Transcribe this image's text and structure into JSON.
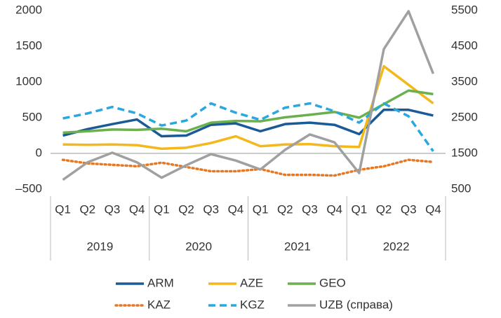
{
  "chart_data": {
    "type": "line",
    "categories": [
      "Q1",
      "Q2",
      "Q3",
      "Q4",
      "Q1",
      "Q2",
      "Q3",
      "Q4",
      "Q1",
      "Q2",
      "Q3",
      "Q4",
      "Q1",
      "Q2",
      "Q3",
      "Q4"
    ],
    "years": [
      "2019",
      "2020",
      "2021",
      "2022"
    ],
    "ylim": [
      -500,
      2000
    ],
    "yticks": [
      {
        "value": -500,
        "label": "–500"
      },
      0,
      500,
      1000,
      1500,
      2000
    ],
    "y2lim": [
      500,
      5500
    ],
    "y2ticks": [
      500,
      1500,
      2500,
      3500,
      4500,
      5500
    ],
    "series": [
      {
        "name": "ARM",
        "color": "#1a5a96",
        "style": "solid",
        "values": [
          250,
          340,
          410,
          475,
          240,
          250,
          400,
          420,
          310,
          410,
          430,
          400,
          270,
          610,
          610,
          530
        ]
      },
      {
        "name": "AZE",
        "color": "#f5b81c",
        "style": "solid",
        "values": [
          125,
          120,
          125,
          115,
          65,
          80,
          145,
          240,
          100,
          125,
          130,
          100,
          90,
          1220,
          960,
          700
        ]
      },
      {
        "name": "GEO",
        "color": "#6ab04c",
        "style": "solid",
        "values": [
          290,
          310,
          335,
          330,
          345,
          310,
          430,
          455,
          450,
          505,
          540,
          580,
          500,
          690,
          880,
          830
        ]
      },
      {
        "name": "KAZ",
        "color": "#e87722",
        "style": "dotted",
        "values": [
          -90,
          -140,
          -160,
          -180,
          -130,
          -190,
          -250,
          -250,
          -220,
          -300,
          -300,
          -310,
          -230,
          -180,
          -90,
          -120
        ]
      },
      {
        "name": "KGZ",
        "color": "#29a8e0",
        "style": "dashed",
        "values": [
          490,
          560,
          650,
          560,
          390,
          460,
          700,
          570,
          470,
          640,
          700,
          590,
          430,
          700,
          520,
          30
        ]
      },
      {
        "name": "UZB (справа)",
        "color": "#a0a0a0",
        "style": "solid",
        "axis": "y2",
        "values": [
          760,
          1250,
          1520,
          1250,
          820,
          1170,
          1480,
          1300,
          1050,
          1600,
          2030,
          1810,
          950,
          4420,
          5480,
          3730
        ]
      }
    ]
  }
}
